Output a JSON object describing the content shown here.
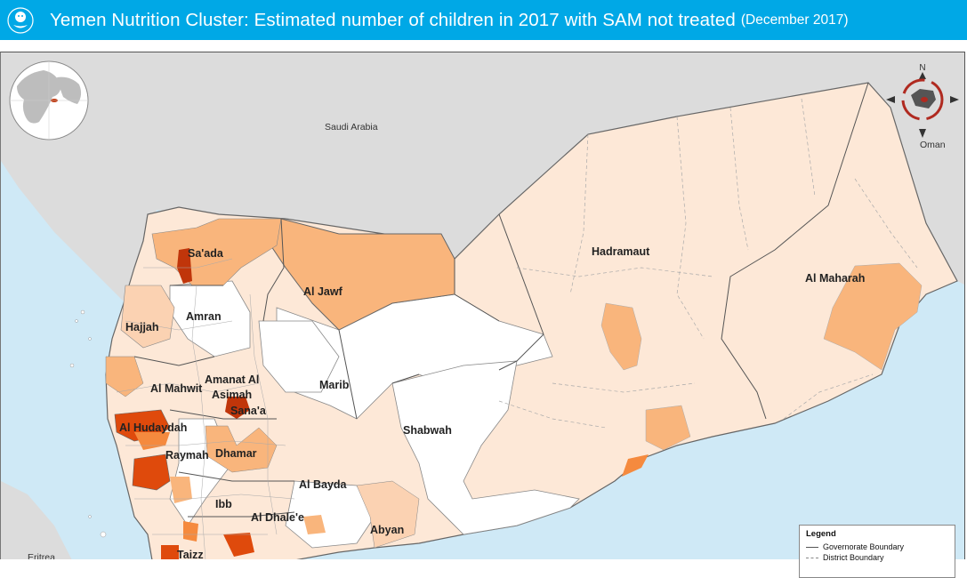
{
  "header": {
    "title": "Yemen Nutrition Cluster: Estimated number of children in 2017 with SAM not treated",
    "date": "(December 2017)",
    "logo_icon": "unicef-child-icon",
    "background": "#00a8e6"
  },
  "map": {
    "colors": {
      "sea": "#cfe9f6",
      "neighbor_land": "#dcdcdc",
      "class_none": "#ffffff",
      "class_1": "#fde8d7",
      "class_2": "#fbd2b2",
      "class_3": "#f9b57c",
      "class_4": "#f58a3e",
      "class_5": "#df4a0c",
      "class_6": "#c0350a"
    },
    "countries": {
      "saudi": "Saudi Arabia",
      "oman": "Oman",
      "eritrea": "Eritrea"
    },
    "governorates": {
      "hadramaut": "Hadramaut",
      "al_maharah": "Al Maharah",
      "al_jawf": "Al Jawf",
      "sada": "Sa'ada",
      "amran": "Amran",
      "hajjah": "Hajjah",
      "amanat_al_asimah_1": "Amanat Al",
      "amanat_al_asimah_2": "Asimah",
      "sanaa": "Sana'a",
      "al_mahwit": "Al Mahwit",
      "marib": "Marib",
      "shabwah": "Shabwah",
      "al_hudaydah": "Al Hudaydah",
      "raymah": "Raymah",
      "dhamar": "Dhamar",
      "al_bayda": "Al Bayda",
      "ibb": "Ibb",
      "al_dhalee": "Al Dhale'e",
      "abyan": "Abyan",
      "taizz": "Taizz"
    },
    "inset_globe_icon": "globe-locator-icon",
    "north_arrow_icon": "north-arrow-icon",
    "north_letter": "N"
  },
  "legend": {
    "title": "Legend",
    "items": [
      "Governorate Boundary",
      "District Boundary"
    ]
  }
}
